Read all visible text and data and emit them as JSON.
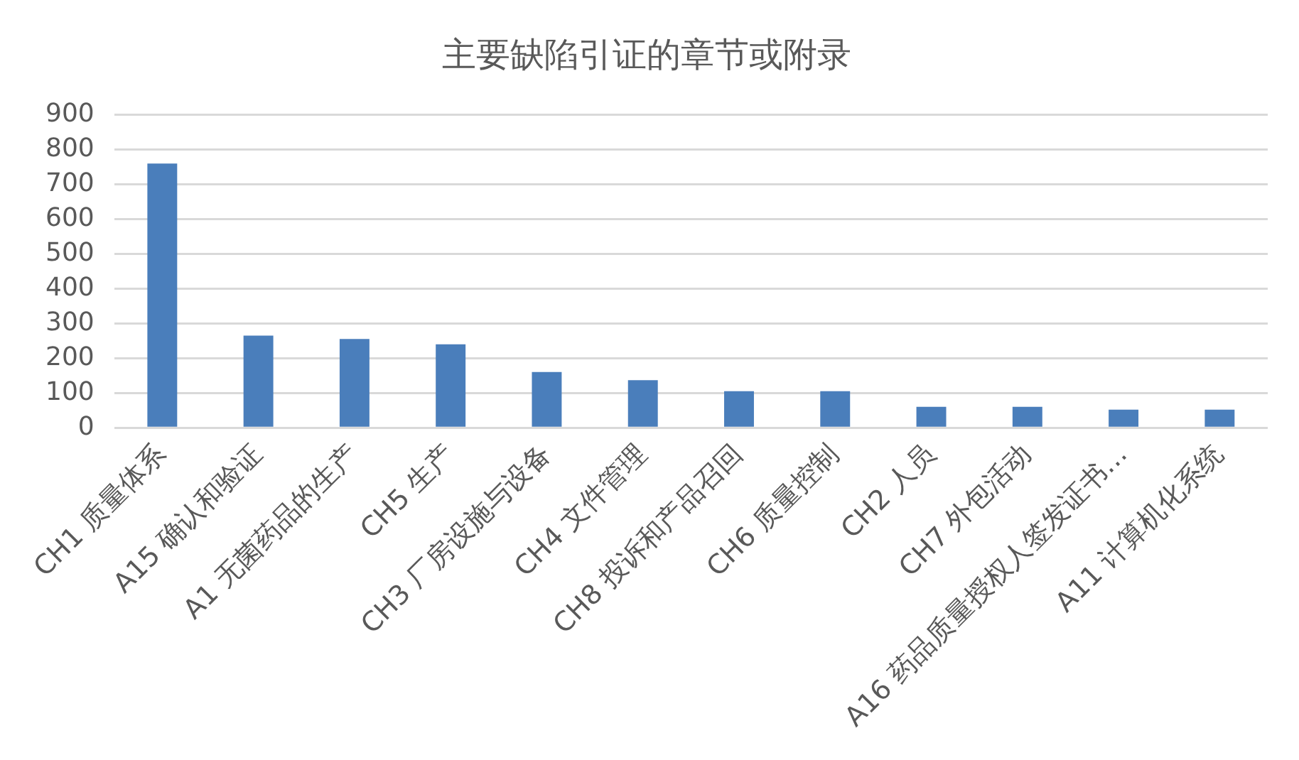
{
  "chart_data": {
    "type": "bar",
    "title": "主要缺陷引证的章节或附录",
    "categories": [
      "CH1 质量体系",
      "A15 确认和验证",
      "A1 无菌药品的生产",
      "CH5 生产",
      "CH3 厂房设施与设备",
      "CH4 文件管理",
      "CH8 投诉和产品召回",
      "CH6 质量控制",
      "CH2 人员",
      "CH7 外包活动",
      "A16 药品质量授权人签发证书…",
      "A11 计算机化系统"
    ],
    "values": [
      760,
      265,
      255,
      240,
      160,
      137,
      105,
      105,
      60,
      60,
      52,
      52
    ],
    "color": "#4a7ebb",
    "ylim": [
      0,
      900
    ],
    "yticks": [
      0,
      100,
      200,
      300,
      400,
      500,
      600,
      700,
      800,
      900
    ],
    "grid": "y"
  }
}
